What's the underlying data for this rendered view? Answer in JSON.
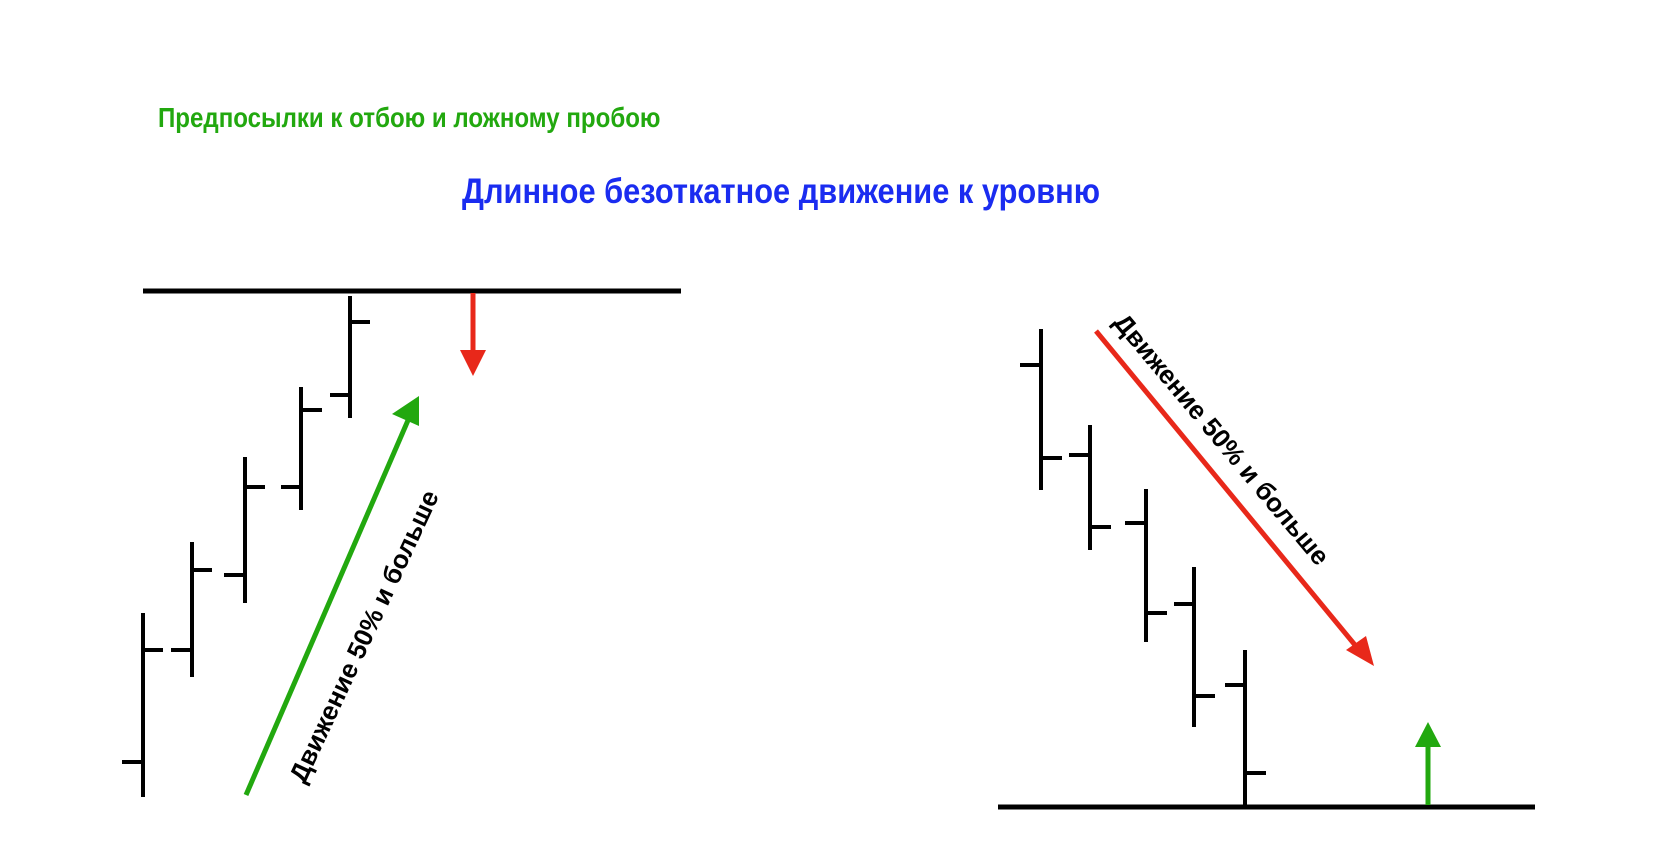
{
  "header": {
    "subtitle": "Предпосылки к отбою и ложному пробою",
    "title": "Длинное безоткатное движение к уровню"
  },
  "left_diagram": {
    "move_label": "Движение 50% и больше"
  },
  "right_diagram": {
    "move_label": "Движение 50% и больше"
  },
  "colors": {
    "subtitle": "#22a80f",
    "title": "#1a2cf0",
    "up_arrow": "#22a80f",
    "down_arrow": "#e8281a",
    "bars": "#000000"
  }
}
